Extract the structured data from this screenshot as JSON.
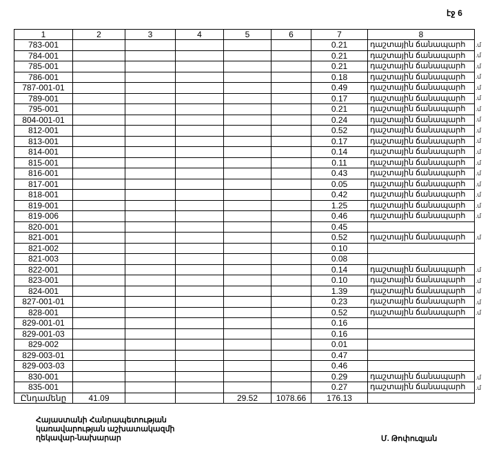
{
  "page_label": "էջ 6",
  "headers": [
    "1",
    "2",
    "3",
    "4",
    "5",
    "6",
    "7",
    "8"
  ],
  "rows": [
    {
      "id": "783-001",
      "c7": "0.21",
      "c8": "դաշտային ճանապարհ",
      "mark": ".մ"
    },
    {
      "id": "784-001",
      "c7": "0.21",
      "c8": "դաշտային ճանապարհ",
      "mark": ".մ"
    },
    {
      "id": "785-001",
      "c7": "0.21",
      "c8": "դաշտային ճանապարհ",
      "mark": ".մ"
    },
    {
      "id": "786-001",
      "c7": "0.18",
      "c8": "դաշտային ճանապարհ",
      "mark": ".մ"
    },
    {
      "id": "787-001-01",
      "c7": "0.49",
      "c8": "դաշտային ճանապարհ",
      "mark": ".մ"
    },
    {
      "id": "789-001",
      "c7": "0.17",
      "c8": "դաշտային ճանապարհ",
      "mark": ".մ"
    },
    {
      "id": "795-001",
      "c7": "0.21",
      "c8": "դաշտային ճանապարհ",
      "mark": ".մ"
    },
    {
      "id": "804-001-01",
      "c7": "0.24",
      "c8": "դաշտային ճանապարհ",
      "mark": ".մ"
    },
    {
      "id": "812-001",
      "c7": "0.52",
      "c8": "դաշտային ճանապարհ",
      "mark": ".մ"
    },
    {
      "id": "813-001",
      "c7": "0.17",
      "c8": "դաշտային ճանապարհ",
      "mark": ".մ"
    },
    {
      "id": "814-001",
      "c7": "0.14",
      "c8": "դաշտային ճանապարհ",
      "mark": ".մ"
    },
    {
      "id": "815-001",
      "c7": "0.11",
      "c8": "դաշտային ճանապարհ",
      "mark": ".մ"
    },
    {
      "id": "816-001",
      "c7": "0.43",
      "c8": "դաշտային ճանապարհ",
      "mark": ".մ"
    },
    {
      "id": "817-001",
      "c7": "0.05",
      "c8": "դաշտային ճանապարհ",
      "mark": ".մ"
    },
    {
      "id": "818-001",
      "c7": "0.42",
      "c8": "դաշտային ճանապարհ",
      "mark": ".մ"
    },
    {
      "id": "819-001",
      "c7": "1.25",
      "c8": "դաշտային ճանապարհ",
      "mark": ".մ"
    },
    {
      "id": "819-006",
      "c7": "0.46",
      "c8": "դաշտային ճանապարհ",
      "mark": ".մ"
    },
    {
      "id": "820-001",
      "c7": "0.45",
      "c8": "",
      "mark": ""
    },
    {
      "id": "821-001",
      "c7": "0.52",
      "c8": "դաշտային ճանապարհ",
      "mark": ".մ"
    },
    {
      "id": "821-002",
      "c7": "0.10",
      "c8": "",
      "mark": ""
    },
    {
      "id": "821-003",
      "c7": "0.08",
      "c8": "",
      "mark": ""
    },
    {
      "id": "822-001",
      "c7": "0.14",
      "c8": "դաշտային ճանապարհ",
      "mark": ".մ"
    },
    {
      "id": "823-001",
      "c7": "0.10",
      "c8": "դաշտային ճանապարհ",
      "mark": ".մ"
    },
    {
      "id": "824-001",
      "c7": "1.39",
      "c8": "դաշտային ճանապարհ",
      "mark": ".մ"
    },
    {
      "id": "827-001-01",
      "c7": "0.23",
      "c8": "դաշտային ճանապարհ",
      "mark": ".մ"
    },
    {
      "id": "828-001",
      "c7": "0.52",
      "c8": "դաշտային ճանապարհ",
      "mark": ".մ"
    },
    {
      "id": "829-001-01",
      "c7": "0.16",
      "c8": "",
      "mark": ""
    },
    {
      "id": "829-001-03",
      "c7": "0.16",
      "c8": "",
      "mark": ""
    },
    {
      "id": "829-002",
      "c7": "0.01",
      "c8": "",
      "mark": ""
    },
    {
      "id": "829-003-01",
      "c7": "0.47",
      "c8": "",
      "mark": ""
    },
    {
      "id": "829-003-03",
      "c7": "0.46",
      "c8": "",
      "mark": ""
    },
    {
      "id": "830-001",
      "c7": "0.29",
      "c8": "դաշտային ճանապարհ",
      "mark": ".մ"
    },
    {
      "id": "835-001",
      "c7": "0.27",
      "c8": "դաշտային ճանապարհ",
      "mark": ".մ"
    }
  ],
  "totals": {
    "label": "Ընդամենը",
    "c2": "41.09",
    "c3": "",
    "c4": "",
    "c5": "29.52",
    "c6": "1078.66",
    "c7": "176.13",
    "c8": ""
  },
  "footer": {
    "lines": [
      "Հայաստանի Հանրապետության",
      "կառավարության աշխատակազմի",
      "ղեկավար-նախարար"
    ],
    "signatory": "Մ. Թոփուզյան"
  }
}
